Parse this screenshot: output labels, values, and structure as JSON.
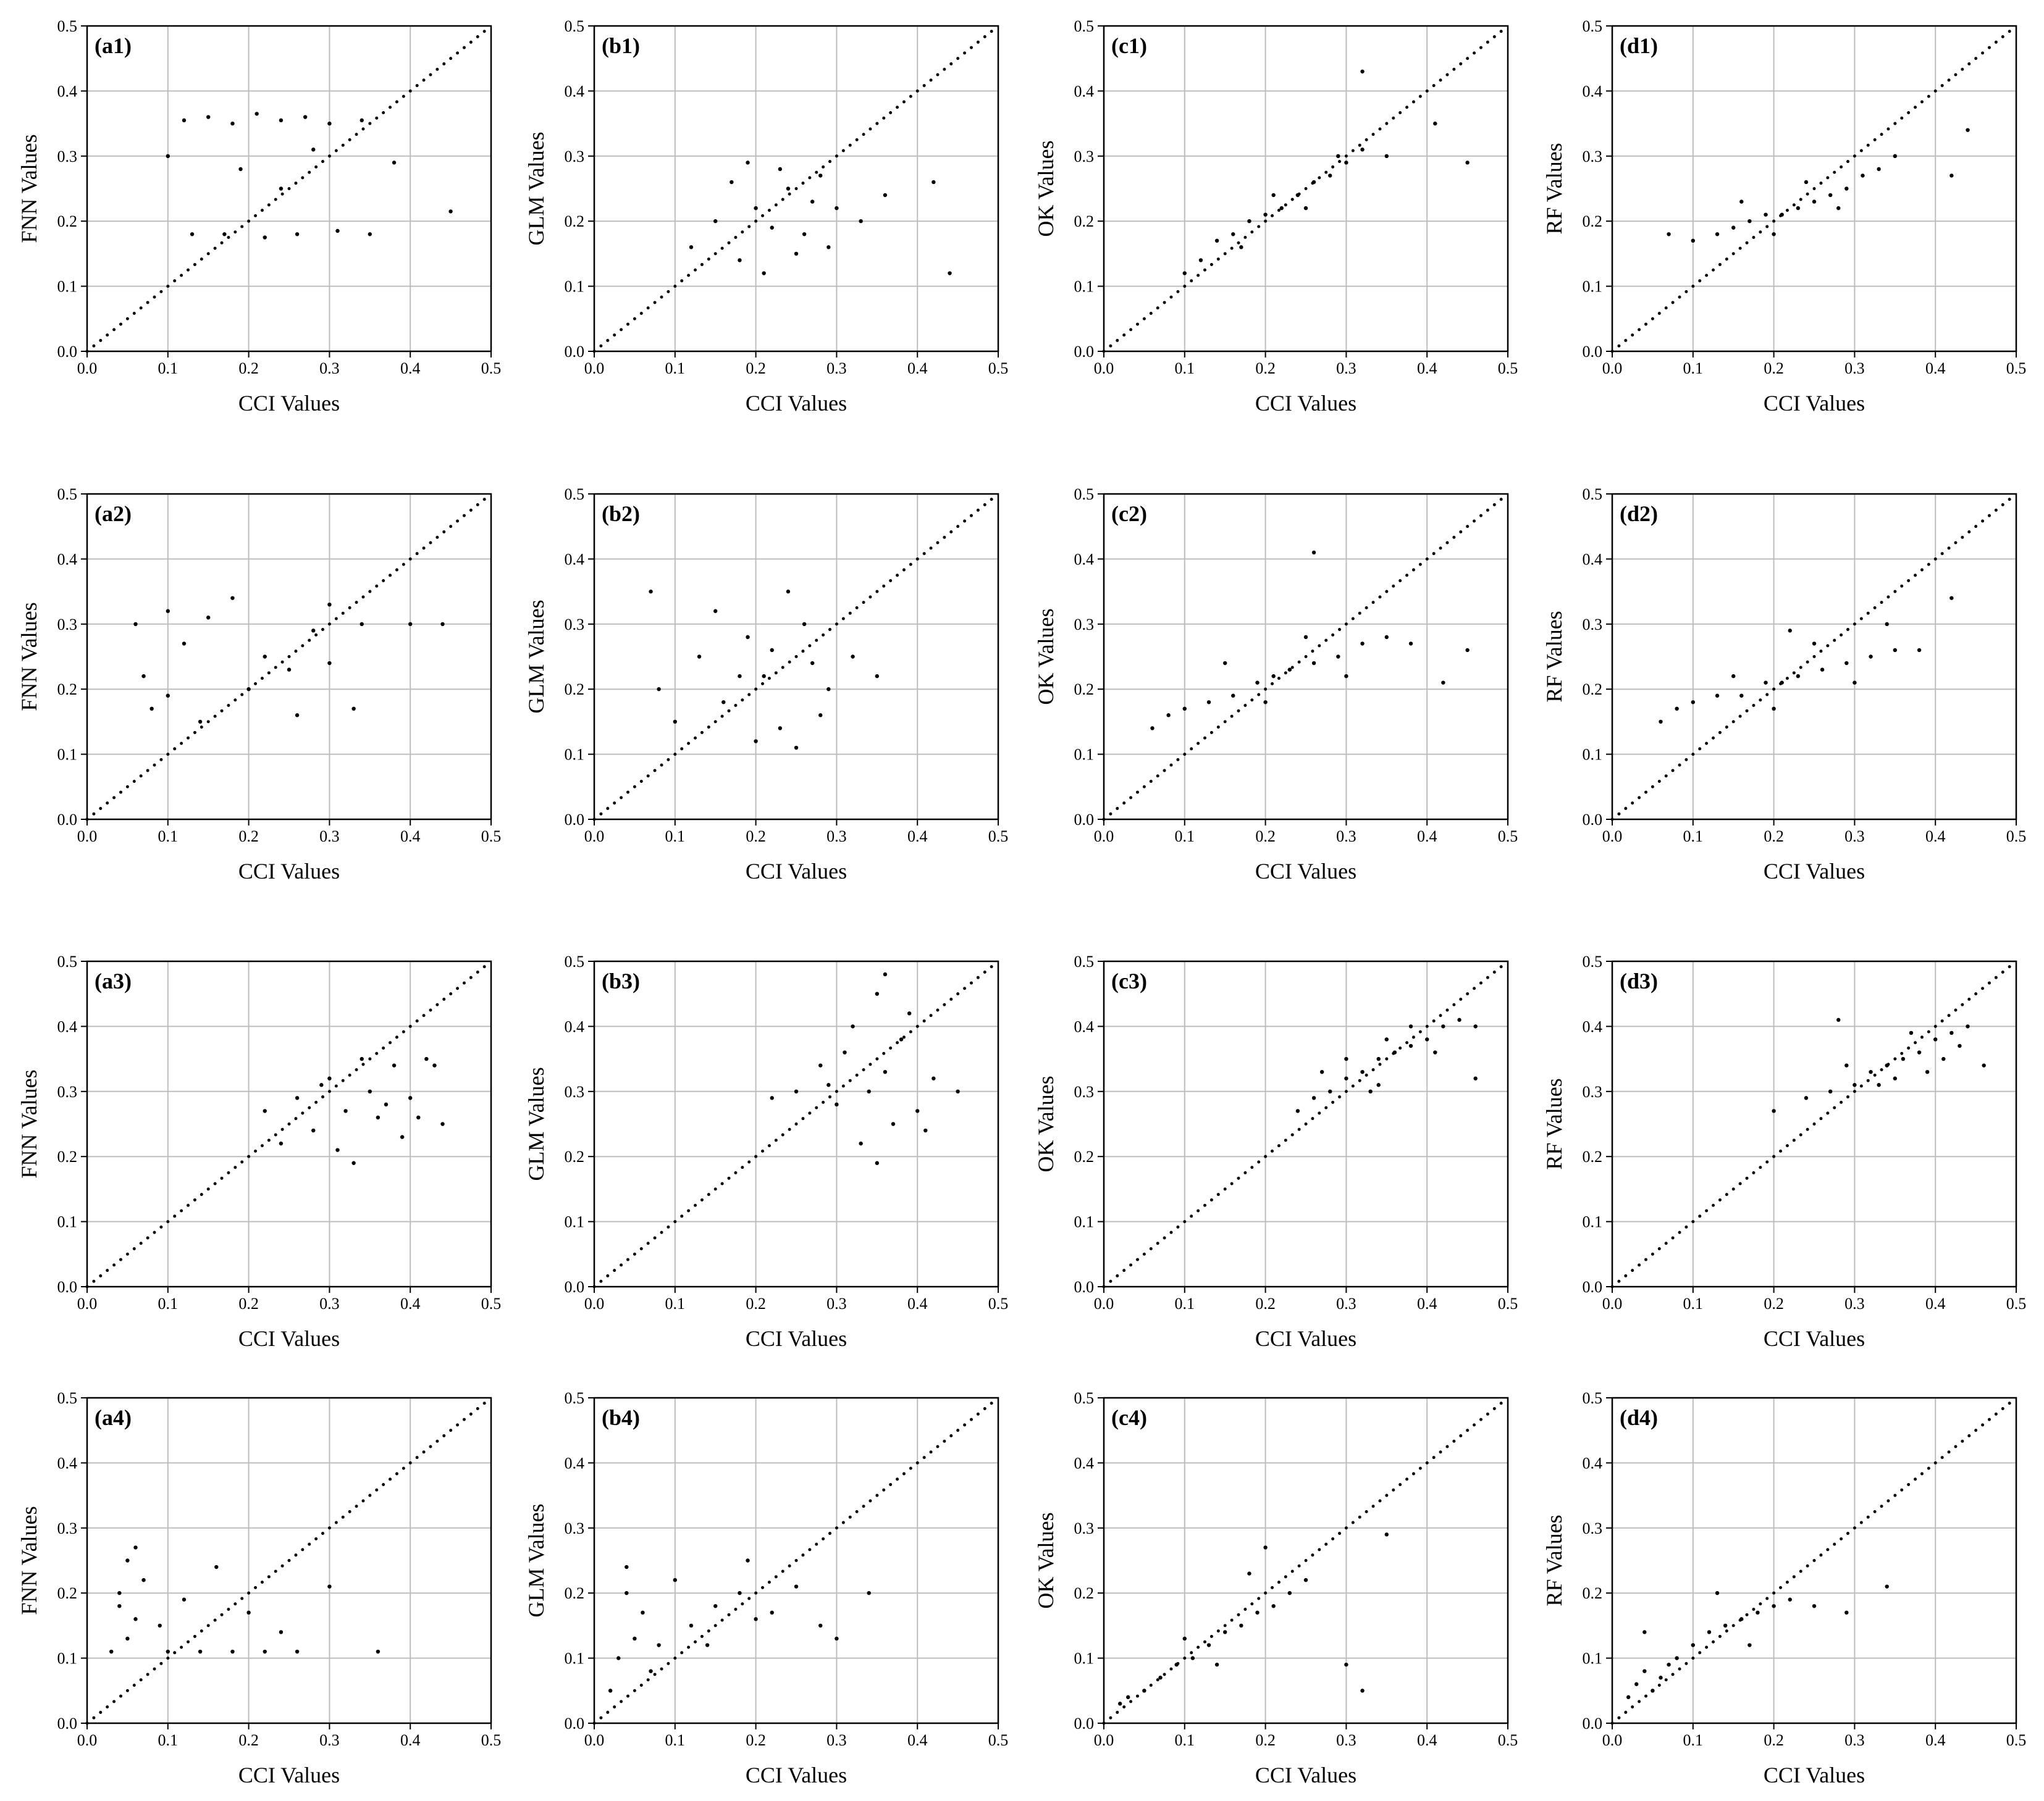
{
  "chart_data": [
    {
      "type": "scatter",
      "label": "(a1)",
      "xlabel": "CCI Values",
      "ylabel": "FNN Values",
      "xlim": [
        0,
        0.5
      ],
      "ylim": [
        0,
        0.5
      ],
      "xticks": [
        {
          "value": 0,
          "label": "0.0"
        },
        0.1,
        0.2,
        0.3,
        0.4,
        0.5
      ],
      "yticks": [
        {
          "value": 0,
          "label": "0.0"
        },
        0.1,
        0.2,
        0.3,
        0.4,
        0.5
      ],
      "grid": true,
      "color": "#000000",
      "x": [
        0.12,
        0.15,
        0.18,
        0.21,
        0.24,
        0.27,
        0.3,
        0.34,
        0.13,
        0.17,
        0.22,
        0.26,
        0.31,
        0.35,
        0.19,
        0.24,
        0.28,
        0.1,
        0.38,
        0.45
      ],
      "y": [
        0.355,
        0.36,
        0.35,
        0.365,
        0.355,
        0.36,
        0.35,
        0.355,
        0.18,
        0.18,
        0.175,
        0.18,
        0.185,
        0.18,
        0.28,
        0.25,
        0.31,
        0.3,
        0.29,
        0.215
      ]
    },
    {
      "type": "scatter",
      "label": "(b1)",
      "xlabel": "CCI Values",
      "ylabel": "GLM Values",
      "xlim": [
        0,
        0.5
      ],
      "ylim": [
        0,
        0.5
      ],
      "xticks": [
        {
          "value": 0,
          "label": "0.0"
        },
        0.1,
        0.2,
        0.3,
        0.4,
        0.5
      ],
      "yticks": [
        {
          "value": 0,
          "label": "0.0"
        },
        0.1,
        0.2,
        0.3,
        0.4,
        0.5
      ],
      "grid": true,
      "color": "#000000",
      "x": [
        0.12,
        0.15,
        0.18,
        0.2,
        0.22,
        0.24,
        0.26,
        0.28,
        0.3,
        0.33,
        0.17,
        0.21,
        0.25,
        0.29,
        0.19,
        0.23,
        0.27,
        0.42,
        0.44,
        0.36
      ],
      "y": [
        0.16,
        0.2,
        0.14,
        0.22,
        0.19,
        0.25,
        0.18,
        0.27,
        0.22,
        0.2,
        0.26,
        0.12,
        0.15,
        0.16,
        0.29,
        0.28,
        0.23,
        0.26,
        0.12,
        0.24
      ]
    },
    {
      "type": "scatter",
      "label": "(c1)",
      "xlabel": "CCI Values",
      "ylabel": "OK Values",
      "xlim": [
        0,
        0.5
      ],
      "ylim": [
        0,
        0.5
      ],
      "xticks": [
        {
          "value": 0,
          "label": "0.0"
        },
        0.1,
        0.2,
        0.3,
        0.4,
        0.5
      ],
      "yticks": [
        {
          "value": 0,
          "label": "0.0"
        },
        0.1,
        0.2,
        0.3,
        0.4,
        0.5
      ],
      "grid": true,
      "color": "#000000",
      "x": [
        0.1,
        0.12,
        0.14,
        0.16,
        0.18,
        0.2,
        0.22,
        0.24,
        0.26,
        0.28,
        0.3,
        0.32,
        0.17,
        0.21,
        0.25,
        0.29,
        0.35,
        0.41,
        0.45,
        0.32
      ],
      "y": [
        0.12,
        0.14,
        0.17,
        0.18,
        0.2,
        0.21,
        0.22,
        0.24,
        0.26,
        0.27,
        0.29,
        0.31,
        0.16,
        0.24,
        0.22,
        0.3,
        0.3,
        0.35,
        0.29,
        0.43
      ]
    },
    {
      "type": "scatter",
      "label": "(d1)",
      "xlabel": "CCI Values",
      "ylabel": "RF Values",
      "xlim": [
        0,
        0.5
      ],
      "ylim": [
        0,
        0.5
      ],
      "xticks": [
        {
          "value": 0,
          "label": "0.0"
        },
        0.1,
        0.2,
        0.3,
        0.4,
        0.5
      ],
      "yticks": [
        {
          "value": 0,
          "label": "0.0"
        },
        0.1,
        0.2,
        0.3,
        0.4,
        0.5
      ],
      "grid": true,
      "color": "#000000",
      "x": [
        0.1,
        0.13,
        0.15,
        0.17,
        0.19,
        0.21,
        0.23,
        0.25,
        0.27,
        0.29,
        0.31,
        0.33,
        0.16,
        0.2,
        0.24,
        0.28,
        0.35,
        0.42,
        0.44,
        0.07
      ],
      "y": [
        0.17,
        0.18,
        0.19,
        0.2,
        0.21,
        0.21,
        0.22,
        0.23,
        0.24,
        0.25,
        0.27,
        0.28,
        0.23,
        0.18,
        0.26,
        0.22,
        0.3,
        0.27,
        0.34,
        0.18
      ]
    },
    {
      "type": "scatter",
      "label": "(a2)",
      "xlabel": "CCI Values",
      "ylabel": "FNN Values",
      "xlim": [
        0,
        0.5
      ],
      "ylim": [
        0,
        0.5
      ],
      "xticks": [
        {
          "value": 0,
          "label": "0.0"
        },
        0.1,
        0.2,
        0.3,
        0.4,
        0.5
      ],
      "yticks": [
        {
          "value": 0,
          "label": "0.0"
        },
        0.1,
        0.2,
        0.3,
        0.4,
        0.5
      ],
      "grid": true,
      "color": "#000000",
      "x": [
        0.06,
        0.08,
        0.1,
        0.14,
        0.18,
        0.22,
        0.26,
        0.3,
        0.34,
        0.07,
        0.12,
        0.2,
        0.28,
        0.33,
        0.15,
        0.25,
        0.1,
        0.3,
        0.4,
        0.44
      ],
      "y": [
        0.3,
        0.17,
        0.32,
        0.15,
        0.34,
        0.25,
        0.16,
        0.33,
        0.3,
        0.22,
        0.27,
        0.2,
        0.29,
        0.17,
        0.31,
        0.23,
        0.19,
        0.24,
        0.3,
        0.3
      ]
    },
    {
      "type": "scatter",
      "label": "(b2)",
      "xlabel": "CCI Values",
      "ylabel": "GLM Values",
      "xlim": [
        0,
        0.5
      ],
      "ylim": [
        0,
        0.5
      ],
      "xticks": [
        {
          "value": 0,
          "label": "0.0"
        },
        0.1,
        0.2,
        0.3,
        0.4,
        0.5
      ],
      "yticks": [
        {
          "value": 0,
          "label": "0.0"
        },
        0.1,
        0.2,
        0.3,
        0.4,
        0.5
      ],
      "grid": true,
      "color": "#000000",
      "x": [
        0.08,
        0.1,
        0.13,
        0.16,
        0.19,
        0.21,
        0.23,
        0.26,
        0.29,
        0.32,
        0.35,
        0.15,
        0.2,
        0.24,
        0.28,
        0.18,
        0.22,
        0.27,
        0.07,
        0.25
      ],
      "y": [
        0.2,
        0.15,
        0.25,
        0.18,
        0.28,
        0.22,
        0.14,
        0.3,
        0.2,
        0.25,
        0.22,
        0.32,
        0.12,
        0.35,
        0.16,
        0.22,
        0.26,
        0.24,
        0.35,
        0.11
      ]
    },
    {
      "type": "scatter",
      "label": "(c2)",
      "xlabel": "CCI Values",
      "ylabel": "OK Values",
      "xlim": [
        0,
        0.5
      ],
      "ylim": [
        0,
        0.5
      ],
      "xticks": [
        {
          "value": 0,
          "label": "0.0"
        },
        0.1,
        0.2,
        0.3,
        0.4,
        0.5
      ],
      "yticks": [
        {
          "value": 0,
          "label": "0.0"
        },
        0.1,
        0.2,
        0.3,
        0.4,
        0.5
      ],
      "grid": true,
      "color": "#000000",
      "x": [
        0.06,
        0.08,
        0.1,
        0.13,
        0.16,
        0.19,
        0.21,
        0.23,
        0.26,
        0.29,
        0.32,
        0.35,
        0.38,
        0.15,
        0.2,
        0.25,
        0.3,
        0.26,
        0.45,
        0.42
      ],
      "y": [
        0.14,
        0.16,
        0.17,
        0.18,
        0.19,
        0.21,
        0.22,
        0.23,
        0.24,
        0.25,
        0.27,
        0.28,
        0.27,
        0.24,
        0.18,
        0.28,
        0.22,
        0.41,
        0.26,
        0.21
      ]
    },
    {
      "type": "scatter",
      "label": "(d2)",
      "xlabel": "CCI Values",
      "ylabel": "RF Values",
      "xlim": [
        0,
        0.5
      ],
      "ylim": [
        0,
        0.5
      ],
      "xticks": [
        {
          "value": 0,
          "label": "0.0"
        },
        0.1,
        0.2,
        0.3,
        0.4,
        0.5
      ],
      "yticks": [
        {
          "value": 0,
          "label": "0.0"
        },
        0.1,
        0.2,
        0.3,
        0.4,
        0.5
      ],
      "grid": true,
      "color": "#000000",
      "x": [
        0.06,
        0.08,
        0.1,
        0.13,
        0.16,
        0.19,
        0.21,
        0.23,
        0.26,
        0.29,
        0.32,
        0.35,
        0.15,
        0.2,
        0.25,
        0.3,
        0.38,
        0.42,
        0.22,
        0.34
      ],
      "y": [
        0.15,
        0.17,
        0.18,
        0.19,
        0.19,
        0.21,
        0.21,
        0.22,
        0.23,
        0.24,
        0.25,
        0.26,
        0.22,
        0.17,
        0.27,
        0.21,
        0.26,
        0.34,
        0.29,
        0.3
      ]
    },
    {
      "type": "scatter",
      "label": "(a3)",
      "xlabel": "CCI Values",
      "ylabel": "FNN Values",
      "xlim": [
        0,
        0.5
      ],
      "ylim": [
        0,
        0.5
      ],
      "xticks": [
        {
          "value": 0,
          "label": "0.0"
        },
        0.1,
        0.2,
        0.3,
        0.4,
        0.5
      ],
      "yticks": [
        {
          "value": 0,
          "label": "0.0"
        },
        0.1,
        0.2,
        0.3,
        0.4,
        0.5
      ],
      "grid": true,
      "color": "#000000",
      "x": [
        0.22,
        0.26,
        0.28,
        0.3,
        0.32,
        0.34,
        0.36,
        0.38,
        0.4,
        0.42,
        0.44,
        0.31,
        0.35,
        0.39,
        0.33,
        0.37,
        0.41,
        0.29,
        0.43,
        0.24
      ],
      "y": [
        0.27,
        0.29,
        0.24,
        0.32,
        0.27,
        0.35,
        0.26,
        0.34,
        0.29,
        0.35,
        0.25,
        0.21,
        0.3,
        0.23,
        0.19,
        0.28,
        0.26,
        0.31,
        0.34,
        0.22
      ]
    },
    {
      "type": "scatter",
      "label": "(b3)",
      "xlabel": "CCI Values",
      "ylabel": "GLM Values",
      "xlim": [
        0,
        0.5
      ],
      "ylim": [
        0,
        0.5
      ],
      "xticks": [
        {
          "value": 0,
          "label": "0.0"
        },
        0.1,
        0.2,
        0.3,
        0.4,
        0.5
      ],
      "yticks": [
        {
          "value": 0,
          "label": "0.0"
        },
        0.1,
        0.2,
        0.3,
        0.4,
        0.5
      ],
      "grid": true,
      "color": "#000000",
      "x": [
        0.25,
        0.28,
        0.3,
        0.32,
        0.34,
        0.35,
        0.36,
        0.38,
        0.4,
        0.42,
        0.45,
        0.33,
        0.37,
        0.31,
        0.39,
        0.35,
        0.36,
        0.29,
        0.41,
        0.22
      ],
      "y": [
        0.3,
        0.34,
        0.28,
        0.4,
        0.3,
        0.45,
        0.33,
        0.38,
        0.27,
        0.32,
        0.3,
        0.22,
        0.25,
        0.36,
        0.42,
        0.19,
        0.48,
        0.31,
        0.24,
        0.29
      ]
    },
    {
      "type": "scatter",
      "label": "(c3)",
      "xlabel": "CCI Values",
      "ylabel": "OK Values",
      "xlim": [
        0,
        0.5
      ],
      "ylim": [
        0,
        0.5
      ],
      "xticks": [
        {
          "value": 0,
          "label": "0.0"
        },
        0.1,
        0.2,
        0.3,
        0.4,
        0.5
      ],
      "yticks": [
        {
          "value": 0,
          "label": "0.0"
        },
        0.1,
        0.2,
        0.3,
        0.4,
        0.5
      ],
      "grid": true,
      "color": "#000000",
      "x": [
        0.24,
        0.26,
        0.28,
        0.3,
        0.32,
        0.34,
        0.36,
        0.38,
        0.4,
        0.42,
        0.44,
        0.3,
        0.34,
        0.38,
        0.46,
        0.27,
        0.35,
        0.41,
        0.33,
        0.46
      ],
      "y": [
        0.27,
        0.29,
        0.3,
        0.32,
        0.33,
        0.35,
        0.36,
        0.37,
        0.38,
        0.4,
        0.41,
        0.35,
        0.31,
        0.4,
        0.32,
        0.33,
        0.38,
        0.36,
        0.3,
        0.4
      ]
    },
    {
      "type": "scatter",
      "label": "(d3)",
      "xlabel": "CCI Values",
      "ylabel": "RF Values",
      "xlim": [
        0,
        0.5
      ],
      "ylim": [
        0,
        0.5
      ],
      "xticks": [
        {
          "value": 0,
          "label": "0.0"
        },
        0.1,
        0.2,
        0.3,
        0.4,
        0.5
      ],
      "yticks": [
        {
          "value": 0,
          "label": "0.0"
        },
        0.1,
        0.2,
        0.3,
        0.4,
        0.5
      ],
      "grid": true,
      "color": "#000000",
      "x": [
        0.2,
        0.24,
        0.27,
        0.3,
        0.32,
        0.34,
        0.36,
        0.38,
        0.4,
        0.42,
        0.44,
        0.29,
        0.33,
        0.37,
        0.41,
        0.46,
        0.28,
        0.35,
        0.39,
        0.43
      ],
      "y": [
        0.27,
        0.29,
        0.3,
        0.31,
        0.33,
        0.34,
        0.35,
        0.36,
        0.38,
        0.39,
        0.4,
        0.34,
        0.31,
        0.39,
        0.35,
        0.34,
        0.41,
        0.32,
        0.33,
        0.37
      ]
    },
    {
      "type": "scatter",
      "label": "(a4)",
      "xlabel": "CCI Values",
      "ylabel": "FNN Values",
      "xlim": [
        0,
        0.5
      ],
      "ylim": [
        0,
        0.5
      ],
      "xticks": [
        {
          "value": 0,
          "label": "0.0"
        },
        0.1,
        0.2,
        0.3,
        0.4,
        0.5
      ],
      "yticks": [
        {
          "value": 0,
          "label": "0.0"
        },
        0.1,
        0.2,
        0.3,
        0.4,
        0.5
      ],
      "grid": true,
      "color": "#000000",
      "x": [
        0.03,
        0.04,
        0.05,
        0.06,
        0.07,
        0.05,
        0.04,
        0.06,
        0.1,
        0.14,
        0.18,
        0.22,
        0.26,
        0.12,
        0.16,
        0.2,
        0.24,
        0.3,
        0.36,
        0.09
      ],
      "y": [
        0.11,
        0.2,
        0.25,
        0.16,
        0.22,
        0.13,
        0.18,
        0.27,
        0.11,
        0.11,
        0.11,
        0.11,
        0.11,
        0.19,
        0.24,
        0.17,
        0.14,
        0.21,
        0.11,
        0.15
      ]
    },
    {
      "type": "scatter",
      "label": "(b4)",
      "xlabel": "CCI Values",
      "ylabel": "GLM Values",
      "xlim": [
        0,
        0.5
      ],
      "ylim": [
        0,
        0.5
      ],
      "xticks": [
        {
          "value": 0,
          "label": "0.0"
        },
        0.1,
        0.2,
        0.3,
        0.4,
        0.5
      ],
      "yticks": [
        {
          "value": 0,
          "label": "0.0"
        },
        0.1,
        0.2,
        0.3,
        0.4,
        0.5
      ],
      "grid": true,
      "color": "#000000",
      "x": [
        0.02,
        0.03,
        0.04,
        0.05,
        0.06,
        0.08,
        0.1,
        0.12,
        0.15,
        0.18,
        0.2,
        0.22,
        0.25,
        0.28,
        0.3,
        0.04,
        0.07,
        0.14,
        0.19,
        0.34
      ],
      "y": [
        0.05,
        0.1,
        0.2,
        0.13,
        0.17,
        0.12,
        0.22,
        0.15,
        0.18,
        0.2,
        0.16,
        0.17,
        0.21,
        0.15,
        0.13,
        0.24,
        0.08,
        0.12,
        0.25,
        0.2
      ]
    },
    {
      "type": "scatter",
      "label": "(c4)",
      "xlabel": "CCI Values",
      "ylabel": "OK Values",
      "xlim": [
        0,
        0.5
      ],
      "ylim": [
        0,
        0.5
      ],
      "xticks": [
        {
          "value": 0,
          "label": "0.0"
        },
        0.1,
        0.2,
        0.3,
        0.4,
        0.5
      ],
      "yticks": [
        {
          "value": 0,
          "label": "0.0"
        },
        0.1,
        0.2,
        0.3,
        0.4,
        0.5
      ],
      "grid": true,
      "color": "#000000",
      "x": [
        0.02,
        0.03,
        0.05,
        0.07,
        0.09,
        0.11,
        0.13,
        0.15,
        0.17,
        0.19,
        0.21,
        0.23,
        0.25,
        0.1,
        0.14,
        0.18,
        0.2,
        0.3,
        0.35,
        0.32
      ],
      "y": [
        0.03,
        0.04,
        0.05,
        0.07,
        0.09,
        0.1,
        0.12,
        0.14,
        0.15,
        0.17,
        0.18,
        0.2,
        0.22,
        0.13,
        0.09,
        0.23,
        0.27,
        0.09,
        0.29,
        0.05
      ]
    },
    {
      "type": "scatter",
      "label": "(d4)",
      "xlabel": "CCI Values",
      "ylabel": "RF Values",
      "xlim": [
        0,
        0.5
      ],
      "ylim": [
        0,
        0.5
      ],
      "xticks": [
        {
          "value": 0,
          "label": "0.0"
        },
        0.1,
        0.2,
        0.3,
        0.4,
        0.5
      ],
      "yticks": [
        {
          "value": 0,
          "label": "0.0"
        },
        0.1,
        0.2,
        0.3,
        0.4,
        0.5
      ],
      "grid": true,
      "color": "#000000",
      "x": [
        0.02,
        0.03,
        0.04,
        0.05,
        0.06,
        0.07,
        0.08,
        0.1,
        0.12,
        0.14,
        0.16,
        0.18,
        0.2,
        0.22,
        0.25,
        0.13,
        0.17,
        0.29,
        0.34,
        0.04
      ],
      "y": [
        0.04,
        0.06,
        0.08,
        0.05,
        0.07,
        0.09,
        0.1,
        0.12,
        0.14,
        0.15,
        0.16,
        0.17,
        0.18,
        0.19,
        0.18,
        0.2,
        0.12,
        0.17,
        0.21,
        0.14
      ]
    }
  ]
}
